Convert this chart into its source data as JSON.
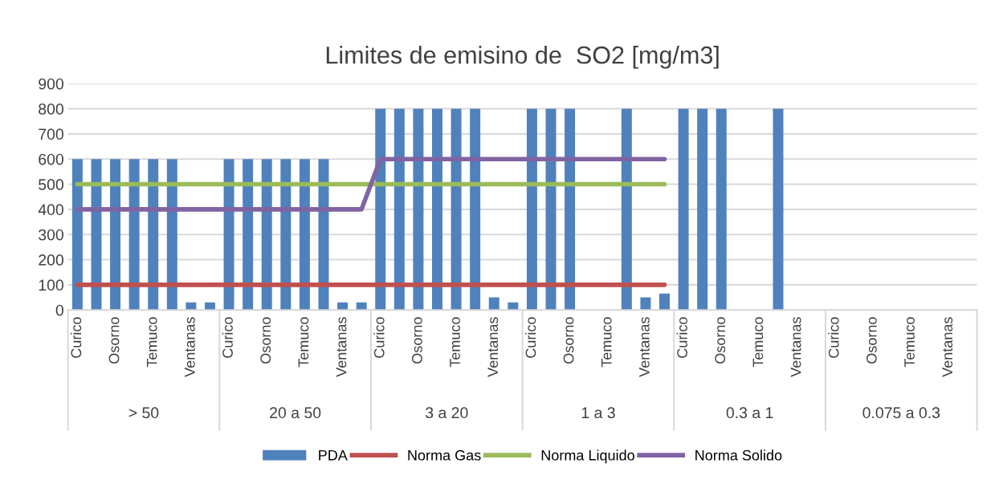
{
  "chart_data": {
    "type": "bar",
    "title": "Limites de emisino de  SO2 [mg/m3]",
    "categories": [
      "Curico",
      null,
      "Osorno",
      null,
      "Temuco",
      null,
      "Ventanas",
      null,
      "Curico",
      null,
      "Osorno",
      null,
      "Temuco",
      null,
      "Ventanas",
      null,
      "Curico",
      null,
      "Osorno",
      null,
      "Temuco",
      null,
      "Ventanas",
      null,
      "Curico",
      null,
      "Osorno",
      null,
      "Temuco",
      null,
      "Ventanas",
      null,
      "Curico",
      null,
      "Osorno",
      null,
      "Temuco",
      null,
      "Ventanas",
      null,
      "Curico",
      null,
      "Osorno",
      null,
      "Temuco",
      null,
      "Ventanas",
      null
    ],
    "annotations": [
      "> 50",
      "20 a 50",
      "3 a 20",
      "1 a 3",
      "0.3 a 1",
      "0.075 a 0.3"
    ],
    "series": [
      {
        "name": "PDA",
        "color": "#4f81bd",
        "values": [
          600,
          600,
          600,
          600,
          600,
          600,
          30,
          30,
          600,
          600,
          600,
          600,
          600,
          600,
          30,
          30,
          800,
          800,
          800,
          800,
          800,
          800,
          50,
          30,
          800,
          800,
          800,
          null,
          null,
          800,
          50,
          65,
          800,
          800,
          800,
          null,
          null,
          800,
          null,
          null,
          null,
          null,
          null,
          null,
          null,
          null,
          null,
          null
        ]
      },
      {
        "name": "Norma Gas",
        "type": "line",
        "color": "#c0504d",
        "values": [
          100,
          100,
          100,
          100,
          100,
          100,
          100,
          100,
          100,
          100,
          100,
          100,
          100,
          100,
          100,
          100,
          100,
          100,
          100,
          100,
          100,
          100,
          100,
          100,
          100,
          100,
          100,
          100,
          100,
          100,
          100,
          100,
          null,
          null,
          null,
          null,
          null,
          null,
          null,
          null,
          null,
          null,
          null,
          null,
          null,
          null,
          null,
          null
        ]
      },
      {
        "name": "Norma Liquido",
        "type": "line",
        "color": "#9bbb59",
        "values": [
          500,
          500,
          500,
          500,
          500,
          500,
          500,
          500,
          500,
          500,
          500,
          500,
          500,
          500,
          500,
          500,
          500,
          500,
          500,
          500,
          500,
          500,
          500,
          500,
          500,
          500,
          500,
          500,
          500,
          500,
          500,
          500,
          null,
          null,
          null,
          null,
          null,
          null,
          null,
          null,
          null,
          null,
          null,
          null,
          null,
          null,
          null,
          null
        ]
      },
      {
        "name": "Norma Solido",
        "type": "line",
        "color": "#8064a2",
        "values": [
          400,
          400,
          400,
          400,
          400,
          400,
          400,
          400,
          400,
          400,
          400,
          400,
          400,
          400,
          400,
          400,
          600,
          600,
          600,
          600,
          600,
          600,
          600,
          600,
          600,
          600,
          600,
          600,
          600,
          600,
          600,
          600,
          null,
          null,
          null,
          null,
          null,
          null,
          null,
          null,
          null,
          null,
          null,
          null,
          null,
          null,
          null,
          null
        ]
      }
    ],
    "ylim": [
      0,
      900
    ],
    "yticks": [
      0,
      100,
      200,
      300,
      400,
      500,
      600,
      700,
      800,
      900
    ],
    "grid": "y",
    "legend": "bottom",
    "marker": "none",
    "line_style": "solid"
  }
}
